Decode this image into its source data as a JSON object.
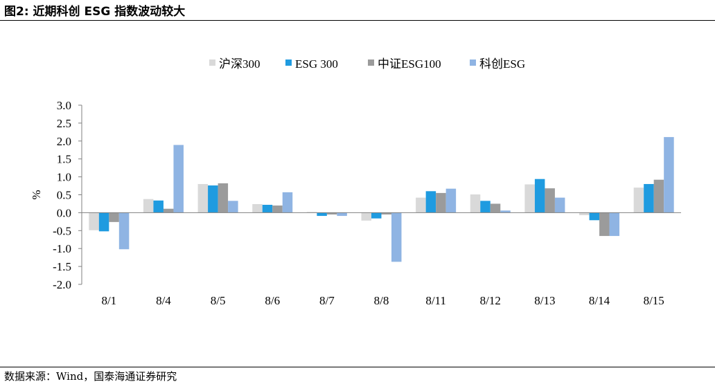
{
  "figure_title": "图2:  近期科创 ESG 指数波动较大",
  "source_note": "数据来源：Wind，国泰海通证券研究",
  "colors": {
    "沪深300": "#d9d9d9",
    "ESG 300": "#1f9be0",
    "中证ESG100": "#9b9b9b",
    "科创ESG": "#8fb4e3"
  },
  "chart_data": {
    "type": "bar",
    "title": "",
    "xlabel": "",
    "ylabel": "%",
    "ylim": [
      -2.0,
      3.0
    ],
    "yticks": [
      "3.0",
      "2.5",
      "2.0",
      "1.5",
      "1.0",
      "0.5",
      "0.0",
      "-0.5",
      "-1.0",
      "-1.5",
      "-2.0"
    ],
    "legend_position": "top-center",
    "grid": false,
    "categories": [
      "8/1",
      "8/4",
      "8/5",
      "8/6",
      "8/7",
      "8/8",
      "8/11",
      "8/12",
      "8/13",
      "8/14",
      "8/15"
    ],
    "series": [
      {
        "name": "沪深300",
        "color": "#d9d9d9",
        "values": [
          -0.49,
          0.38,
          0.8,
          0.24,
          0.02,
          -0.22,
          0.42,
          0.51,
          0.79,
          -0.07,
          0.7
        ]
      },
      {
        "name": "ESG 300",
        "color": "#1f9be0",
        "values": [
          -0.52,
          0.34,
          0.76,
          0.22,
          -0.09,
          -0.16,
          0.6,
          0.33,
          0.94,
          -0.21,
          0.8
        ]
      },
      {
        "name": "中证ESG100",
        "color": "#9b9b9b",
        "values": [
          -0.26,
          0.11,
          0.82,
          0.2,
          -0.05,
          -0.05,
          0.55,
          0.25,
          0.68,
          -0.65,
          0.92
        ]
      },
      {
        "name": "科创ESG",
        "color": "#8fb4e3",
        "values": [
          -1.02,
          1.89,
          0.33,
          0.57,
          -0.09,
          -1.37,
          0.67,
          0.06,
          0.42,
          -0.65,
          2.11
        ]
      }
    ]
  }
}
